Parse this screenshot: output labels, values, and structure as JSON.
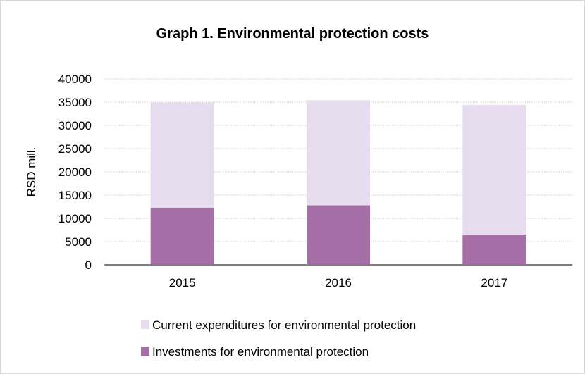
{
  "chart_data": {
    "type": "bar",
    "stacked": true,
    "title": "Graph 1. Environmental protection costs",
    "xlabel": "",
    "ylabel": "RSD mill.",
    "categories": [
      "2015",
      "2016",
      "2017"
    ],
    "ylim": [
      0,
      40000
    ],
    "yticks": [
      0,
      5000,
      10000,
      15000,
      20000,
      25000,
      30000,
      35000,
      40000
    ],
    "grid": true,
    "legend_position": "bottom",
    "series": [
      {
        "name": "Investments for environmental protection",
        "color": "#a66ea6",
        "values": [
          12300,
          12800,
          6500
        ]
      },
      {
        "name": "Current expenditures for environmental protection",
        "color": "#e6dced",
        "values": [
          22600,
          22600,
          27900
        ]
      }
    ],
    "legend_order": [
      1,
      0
    ]
  }
}
